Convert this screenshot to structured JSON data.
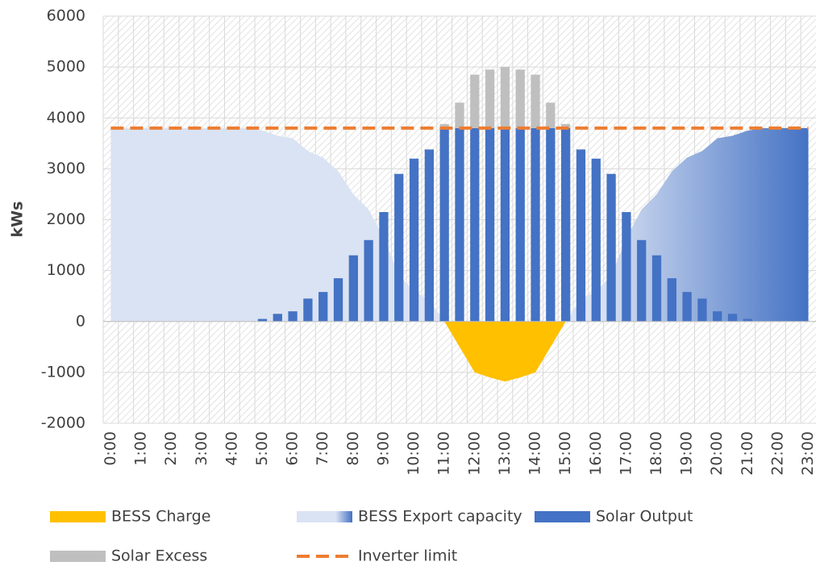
{
  "chart_data": {
    "type": "combo",
    "y_label": "kWs",
    "categories": [
      "0:00",
      null,
      "1:00",
      null,
      "2:00",
      null,
      "3:00",
      null,
      "4:00",
      null,
      "5:00",
      null,
      "6:00",
      null,
      "7:00",
      null,
      "8:00",
      null,
      "9:00",
      null,
      "10:00",
      null,
      "11:00",
      null,
      "12:00",
      null,
      "13:00",
      null,
      "14:00",
      null,
      "15:00",
      null,
      "16:00",
      null,
      "17:00",
      null,
      "18:00",
      null,
      "19:00",
      null,
      "20:00",
      null,
      "21:00",
      null,
      "22:00",
      null,
      "23:00"
    ],
    "ylim": [
      -2000,
      6000
    ],
    "yticks": [
      -2000,
      -1000,
      0,
      1000,
      2000,
      3000,
      4000,
      5000,
      6000
    ],
    "grid": true,
    "stacked": true,
    "legend": "bottom",
    "series": [
      {
        "name": "BESS Charge",
        "type": "area",
        "color": "#ffc000",
        "values": [
          null,
          null,
          null,
          null,
          null,
          null,
          null,
          null,
          null,
          null,
          null,
          null,
          null,
          null,
          null,
          null,
          null,
          null,
          null,
          null,
          null,
          null,
          0,
          -500,
          -1000,
          -1100,
          -1180,
          -1100,
          -1000,
          -500,
          0,
          null,
          null,
          null,
          null,
          null,
          null,
          null,
          null,
          null,
          null,
          null,
          null,
          null,
          null,
          null,
          null
        ]
      },
      {
        "name": "BESS Export capacity",
        "type": "area",
        "color": "#dae3f3",
        "gradient_color": "#4472c4",
        "values": [
          3800,
          3800,
          3800,
          3800,
          3800,
          3800,
          3800,
          3800,
          3800,
          3800,
          3750,
          3650,
          3600,
          3350,
          3220,
          2950,
          2500,
          2200,
          1650,
          900,
          600,
          420,
          0,
          0,
          0,
          0,
          0,
          0,
          0,
          0,
          0,
          420,
          600,
          900,
          1650,
          2200,
          2500,
          2950,
          3220,
          3350,
          3600,
          3650,
          3750,
          3800,
          3800,
          3800,
          3800
        ]
      },
      {
        "name": "Solar Output",
        "type": "bar",
        "color": "#4472c4",
        "values": [
          0,
          0,
          0,
          0,
          0,
          0,
          0,
          0,
          0,
          0,
          50,
          150,
          200,
          450,
          580,
          850,
          1300,
          1600,
          2150,
          2900,
          3200,
          3380,
          3800,
          3800,
          3800,
          3800,
          3800,
          3800,
          3800,
          3800,
          3800,
          3380,
          3200,
          2900,
          2150,
          1600,
          1300,
          850,
          580,
          450,
          200,
          150,
          50,
          0,
          0,
          0,
          0
        ]
      },
      {
        "name": "Solar Excess",
        "type": "bar",
        "color": "#bfbfbf",
        "values": [
          0,
          0,
          0,
          0,
          0,
          0,
          0,
          0,
          0,
          0,
          0,
          0,
          0,
          0,
          0,
          0,
          0,
          0,
          0,
          0,
          0,
          0,
          80,
          500,
          1050,
          1150,
          1200,
          1150,
          1050,
          500,
          80,
          0,
          0,
          0,
          0,
          0,
          0,
          0,
          0,
          0,
          0,
          0,
          0,
          0,
          0,
          0,
          0
        ]
      },
      {
        "name": "Inverter limit",
        "type": "line",
        "color": "#ed7d31",
        "values": [
          3800,
          3800,
          3800,
          3800,
          3800,
          3800,
          3800,
          3800,
          3800,
          3800,
          3800,
          3800,
          3800,
          3800,
          3800,
          3800,
          3800,
          3800,
          3800,
          3800,
          3800,
          3800,
          3800,
          3800,
          3800,
          3800,
          3800,
          3800,
          3800,
          3800,
          3800,
          3800,
          3800,
          3800,
          3800,
          3800,
          3800,
          3800,
          3800,
          3800,
          3800,
          3800,
          3800,
          3800,
          3800,
          3800,
          3800
        ]
      }
    ]
  }
}
